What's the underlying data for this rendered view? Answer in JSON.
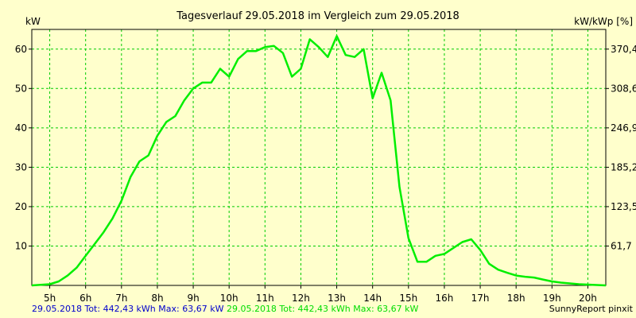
{
  "chart_data": {
    "type": "line",
    "title": "Tagesverlauf 29.05.2018 im Vergleich zum 29.05.2018",
    "ylabel_left": "kW",
    "ylabel_right": "kW/kWp [%]",
    "xlim": [
      4.5,
      20.5
    ],
    "ylim": [
      0,
      65
    ],
    "grid": true,
    "x_ticks": [
      "5h",
      "6h",
      "7h",
      "8h",
      "9h",
      "10h",
      "11h",
      "12h",
      "13h",
      "14h",
      "15h",
      "16h",
      "17h",
      "18h",
      "19h",
      "20h"
    ],
    "y_ticks_left": [
      "10",
      "20",
      "30",
      "40",
      "50",
      "60"
    ],
    "y_ticks_right": [
      "61,7",
      "123,5",
      "185,2",
      "246,9",
      "308,6",
      "370,4"
    ],
    "series": [
      {
        "color": "#00EE00",
        "x": [
          4.5,
          5.0,
          5.25,
          5.5,
          5.75,
          6.0,
          6.25,
          6.5,
          6.75,
          7.0,
          7.25,
          7.5,
          7.75,
          8.0,
          8.25,
          8.5,
          8.75,
          9.0,
          9.25,
          9.5,
          9.75,
          10.0,
          10.25,
          10.5,
          10.75,
          11.0,
          11.25,
          11.5,
          11.75,
          12.0,
          12.25,
          12.5,
          12.75,
          13.0,
          13.25,
          13.5,
          13.75,
          14.0,
          14.25,
          14.5,
          14.75,
          15.0,
          15.25,
          15.5,
          15.75,
          16.0,
          16.25,
          16.5,
          16.75,
          17.0,
          17.25,
          17.5,
          17.75,
          18.0,
          18.25,
          18.5,
          18.75,
          19.0,
          19.25,
          19.5,
          19.75,
          20.0,
          20.5
        ],
        "values": [
          0,
          0.3,
          1.0,
          2.5,
          4.5,
          7.5,
          10.5,
          13.5,
          17.0,
          21.5,
          27.5,
          31.5,
          33.0,
          38.0,
          41.5,
          43.0,
          47.0,
          50.0,
          51.5,
          51.5,
          55.0,
          53.0,
          57.5,
          59.5,
          59.5,
          60.5,
          60.8,
          59.0,
          53.0,
          55.0,
          62.5,
          60.5,
          58.0,
          63.3,
          58.5,
          58.0,
          60.0,
          47.5,
          54.0,
          47.0,
          25.0,
          12.0,
          6.0,
          6.0,
          7.5,
          8.0,
          9.5,
          11.0,
          11.7,
          9.0,
          5.5,
          4.0,
          3.2,
          2.5,
          2.2,
          2.0,
          1.5,
          1.0,
          0.7,
          0.5,
          0.3,
          0.2,
          0
        ]
      }
    ]
  },
  "footer": {
    "blue_text": "29.05.2018 Tot: 442,43 kWh Max: 63,67 kW",
    "green_text": "29.05.2018 Tot: 442,43 kWh Max: 63,67 kW",
    "credit": "SunnyReport pinxit"
  },
  "colors": {
    "background": "#FFFFCC",
    "grid": "#00CC00",
    "line": "#00EE00",
    "footer_blue": "#0000CC"
  }
}
